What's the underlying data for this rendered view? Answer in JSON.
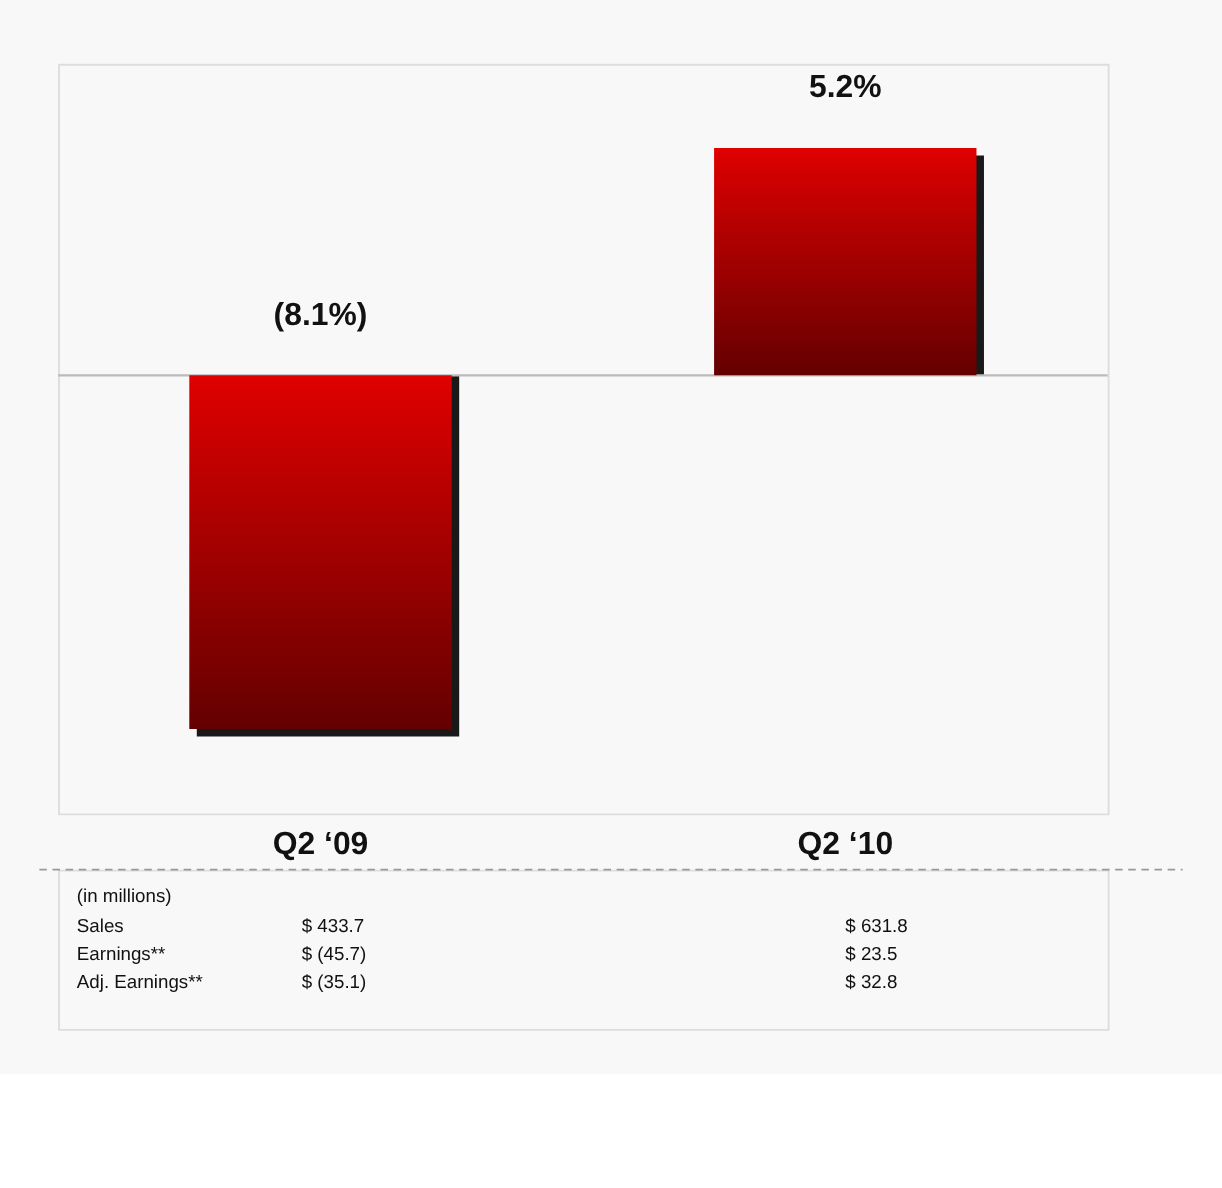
{
  "chart_data": {
    "type": "bar",
    "categories": [
      "Q2 ‘09",
      "Q2 ‘10"
    ],
    "values": [
      -8.1,
      5.2
    ],
    "value_labels": [
      "(8.1%)",
      "5.2%"
    ],
    "color": "#e00000",
    "annotations": [
      "(in millions)",
      "Sales",
      "$    433.7",
      "$  631.8",
      "Earnings**",
      "$    (45.7)",
      "$     23.5",
      "Adj. Earnings**",
      "$    (35.1)",
      "$     32.8"
    ]
  }
}
